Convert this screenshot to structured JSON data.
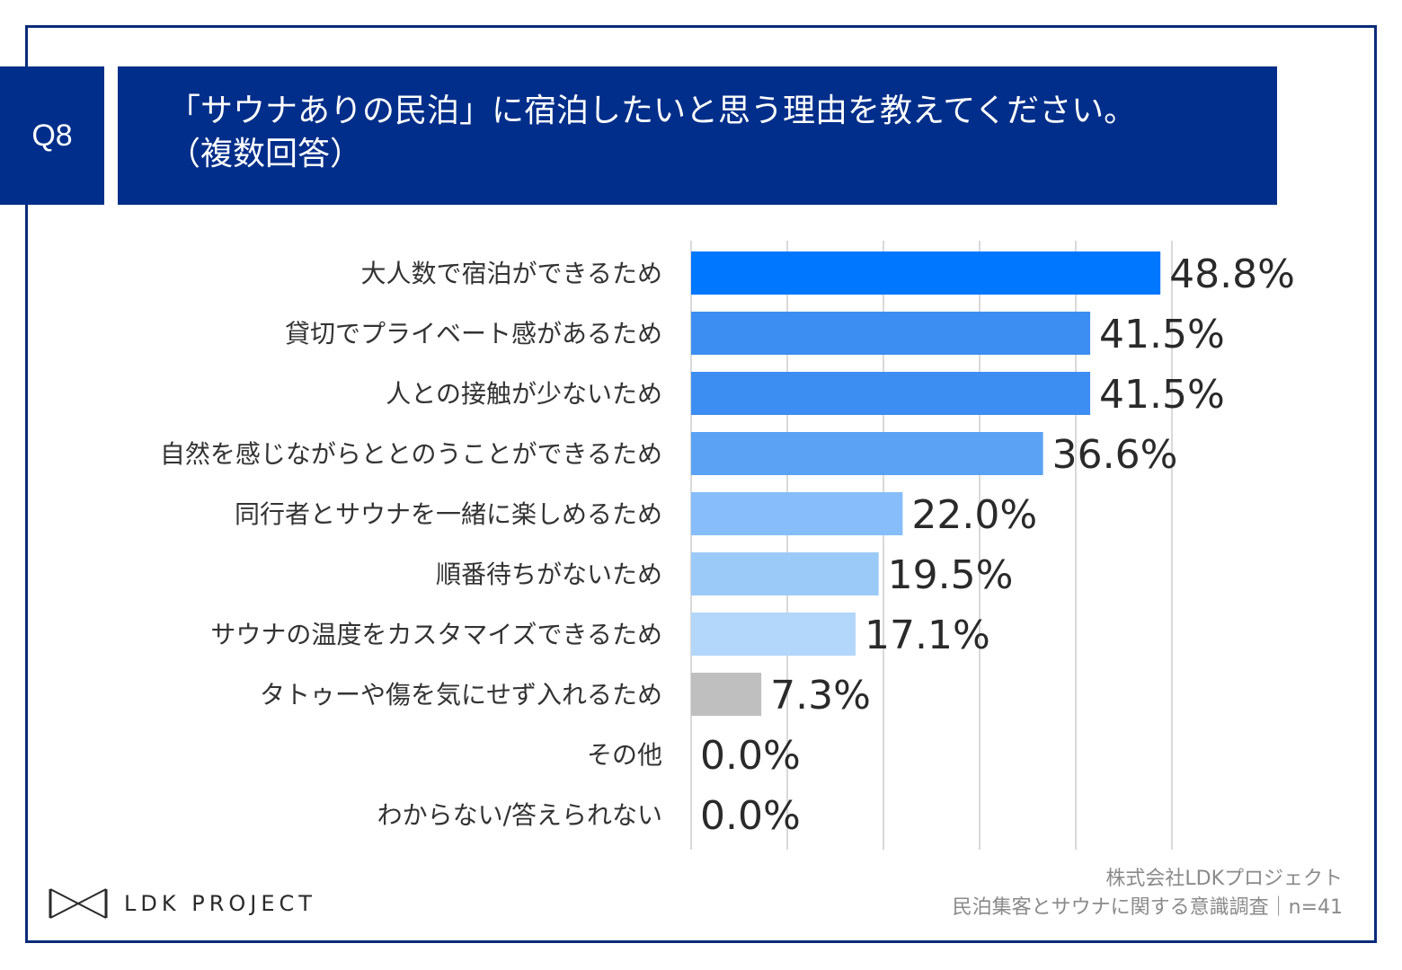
{
  "header": {
    "question_no": "Q8",
    "title_line1": "「サウナありの民泊」に宿泊したいと思う理由を教えてください。",
    "title_line2": "（複数回答）"
  },
  "chart_data": {
    "type": "bar",
    "orientation": "horizontal",
    "categories": [
      "大人数で宿泊ができるため",
      "貸切でプライベート感があるため",
      "人との接触が少ないため",
      "自然を感じながらととのうことができるため",
      "同行者とサウナを一緒に楽しめるため",
      "順番待ちがないため",
      "サウナの温度をカスタマイズできるため",
      "タトゥーや傷を気にせず入れるため",
      "その他",
      "わからない/答えられない"
    ],
    "values": [
      48.8,
      41.5,
      41.5,
      36.6,
      22.0,
      19.5,
      17.1,
      7.3,
      0.0,
      0.0
    ],
    "value_labels": [
      "48.8%",
      "41.5%",
      "41.5%",
      "36.6%",
      "22.0%",
      "19.5%",
      "17.1%",
      "7.3%",
      "0.0%",
      "0.0%"
    ],
    "colors": [
      "#0077ff",
      "#3d8ef2",
      "#3d8ef2",
      "#5ba2f5",
      "#86bdfa",
      "#9ccaf8",
      "#b3d6fb",
      "#bfbfbf",
      "#bfbfbf",
      "#bfbfbf"
    ],
    "xlim": [
      0,
      50
    ],
    "grid": true,
    "legend": "none"
  },
  "footer": {
    "logo_text": "LDK PROJECT",
    "source_line1": "株式会社LDKプロジェクト",
    "source_line2": "民泊集客とサウナに関する意識調査｜n=41"
  }
}
